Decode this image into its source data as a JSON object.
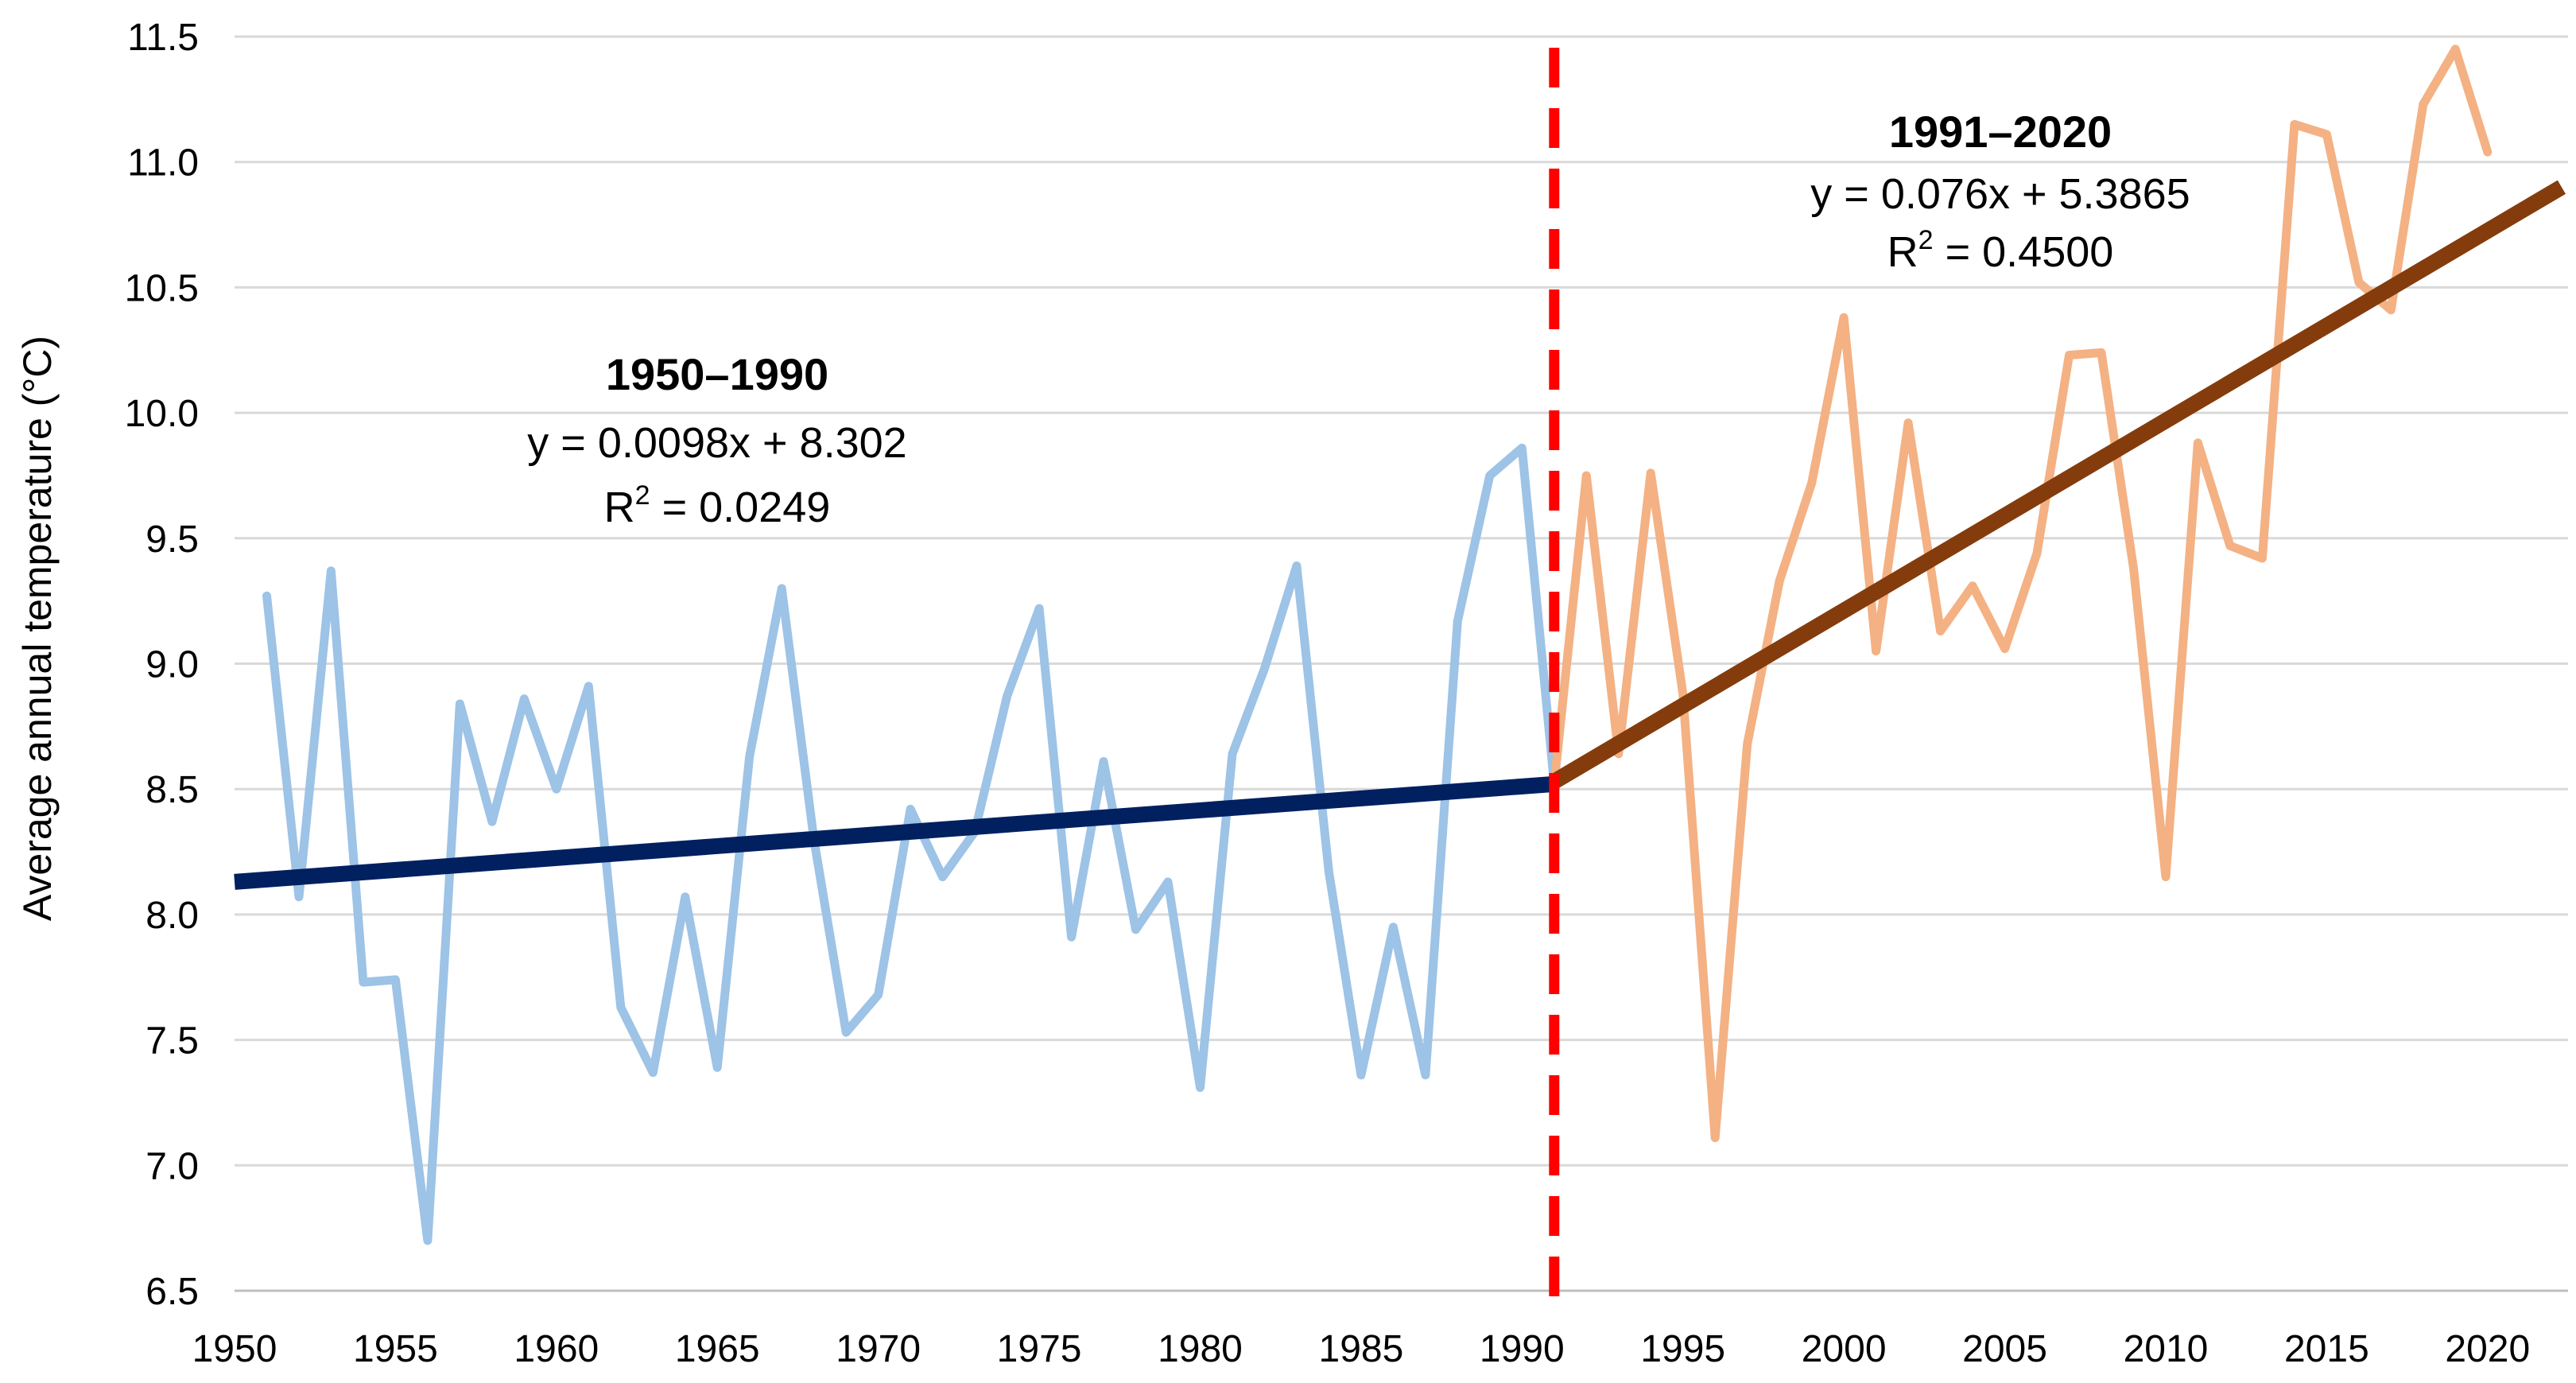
{
  "chart_data": {
    "type": "line",
    "title": "",
    "xlabel": "",
    "ylabel": "Average annual temperature (°C)",
    "xlim": [
      1950,
      2022.5
    ],
    "ylim": [
      6.5,
      11.5
    ],
    "grid": true,
    "x_ticks": [
      "1950",
      "1955",
      "1960",
      "1965",
      "1970",
      "1975",
      "1980",
      "1985",
      "1990",
      "1995",
      "2000",
      "2005",
      "2010",
      "2015",
      "2020"
    ],
    "x_tick_values": [
      1950,
      1955,
      1960,
      1965,
      1970,
      1975,
      1980,
      1985,
      1990,
      1995,
      2000,
      2005,
      2010,
      2015,
      2020
    ],
    "y_ticks": [
      "6.5",
      "7.0",
      "7.5",
      "8.0",
      "8.5",
      "9.0",
      "9.5",
      "10.0",
      "10.5",
      "11.0",
      "11.5"
    ],
    "y_tick_values": [
      6.5,
      7.0,
      7.5,
      8.0,
      8.5,
      9.0,
      9.5,
      10.0,
      10.5,
      11.0,
      11.5
    ],
    "series": [
      {
        "name": "1950–1990",
        "color": "#9dc3e6",
        "x": [
          1951,
          1952,
          1953,
          1954,
          1955,
          1956,
          1957,
          1958,
          1959,
          1960,
          1961,
          1962,
          1963,
          1964,
          1965,
          1966,
          1967,
          1968,
          1969,
          1970,
          1971,
          1972,
          1973,
          1974,
          1975,
          1976,
          1977,
          1978,
          1979,
          1980,
          1981,
          1982,
          1983,
          1984,
          1985,
          1986,
          1987,
          1988,
          1989,
          1990,
          1991
        ],
        "values": [
          9.27,
          8.07,
          9.37,
          7.73,
          7.74,
          6.7,
          8.84,
          8.37,
          8.86,
          8.5,
          8.91,
          7.63,
          7.37,
          8.07,
          7.39,
          8.63,
          9.3,
          8.3,
          7.53,
          7.68,
          8.42,
          8.15,
          8.33,
          8.87,
          9.22,
          7.91,
          8.61,
          7.94,
          8.13,
          7.31,
          8.64,
          8.98,
          9.39,
          8.17,
          7.36,
          7.95,
          7.36,
          9.17,
          9.75,
          9.86,
          8.52
        ]
      },
      {
        "name": "1991–2020",
        "color": "#f4b183",
        "x": [
          1991,
          1992,
          1993,
          1994,
          1995,
          1996,
          1997,
          1998,
          1999,
          2000,
          2001,
          2002,
          2003,
          2004,
          2005,
          2006,
          2007,
          2008,
          2009,
          2010,
          2011,
          2012,
          2013,
          2014,
          2015,
          2016,
          2017,
          2018,
          2019,
          2020
        ],
        "values": [
          8.52,
          9.75,
          8.64,
          9.76,
          8.88,
          7.11,
          8.68,
          9.33,
          9.72,
          10.38,
          9.05,
          9.96,
          9.13,
          9.31,
          9.06,
          9.44,
          10.23,
          10.24,
          9.38,
          8.15,
          9.88,
          9.47,
          9.42,
          11.15,
          11.11,
          10.52,
          10.41,
          11.23,
          11.45,
          11.04
        ]
      }
    ],
    "trendlines": [
      {
        "name": "1950–1990 trend",
        "color": "#002060",
        "x": [
          1950,
          1991
        ],
        "values": [
          8.13,
          8.52
        ]
      },
      {
        "name": "1991–2020 trend",
        "color": "#843c0c",
        "x": [
          1991,
          2022.3
        ],
        "values": [
          8.53,
          10.9
        ]
      }
    ],
    "divider": {
      "x": 1991,
      "color": "#ff0000",
      "style": "dashed"
    },
    "annotations": [
      {
        "title": "1950–1990",
        "equation": "y = 0.0098x + 8.302",
        "r2_label": "R",
        "r2_sup": "2",
        "r2_value": " = 0.0249"
      },
      {
        "title": "1991–2020",
        "equation": "y = 0.076x + 5.3865",
        "r2_label": "R",
        "r2_sup": "2",
        "r2_value": " = 0.4500"
      }
    ],
    "colors": {
      "grid": "#d9d9d9",
      "axis": "#bfbfbf",
      "text": "#000000"
    }
  }
}
